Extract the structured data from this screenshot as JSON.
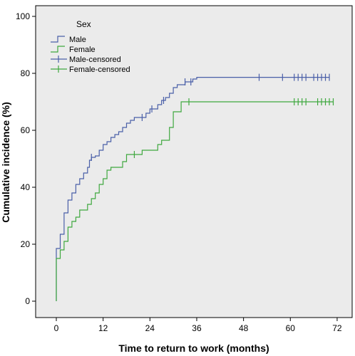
{
  "chart_data": {
    "type": "line",
    "subtype": "kaplan-meier-cumulative-incidence",
    "xlabel": "Time to return to work (months)",
    "ylabel": "Cumulative incidence (%)",
    "xlim": [
      0,
      72
    ],
    "ylim": [
      0,
      100
    ],
    "xticks": [
      0,
      12,
      24,
      36,
      48,
      60,
      72
    ],
    "yticks": [
      0,
      20,
      40,
      60,
      80,
      100
    ],
    "grid": false,
    "background": "#ebebeb",
    "legend": {
      "title": "Sex",
      "position": "top-left",
      "entries": [
        "Male",
        "Female",
        "Male-censored",
        "Female-censored"
      ]
    },
    "series": [
      {
        "name": "Male",
        "color": "#4a5fa8",
        "steps": [
          [
            0,
            0
          ],
          [
            0,
            18.5
          ],
          [
            1,
            18.5
          ],
          [
            1,
            23.5
          ],
          [
            2,
            23.5
          ],
          [
            2,
            31
          ],
          [
            3,
            31
          ],
          [
            3,
            35.5
          ],
          [
            4,
            35.5
          ],
          [
            4,
            38
          ],
          [
            5,
            38
          ],
          [
            5,
            41
          ],
          [
            6,
            41
          ],
          [
            6,
            43
          ],
          [
            7,
            43
          ],
          [
            7,
            45
          ],
          [
            8,
            45
          ],
          [
            8,
            47
          ],
          [
            8.5,
            47
          ],
          [
            8.5,
            49.5
          ],
          [
            9,
            49.5
          ],
          [
            9,
            50.5
          ],
          [
            10,
            50.5
          ],
          [
            10,
            51
          ],
          [
            11,
            51
          ],
          [
            11,
            53
          ],
          [
            12,
            53
          ],
          [
            12,
            55
          ],
          [
            13,
            55
          ],
          [
            13,
            56
          ],
          [
            14,
            56
          ],
          [
            14,
            57.5
          ],
          [
            15,
            57.5
          ],
          [
            15,
            58.5
          ],
          [
            16,
            58.5
          ],
          [
            16,
            59.5
          ],
          [
            17,
            59.5
          ],
          [
            17,
            61
          ],
          [
            18,
            61
          ],
          [
            18,
            62.5
          ],
          [
            19,
            62.5
          ],
          [
            19,
            63.5
          ],
          [
            20,
            63.5
          ],
          [
            20,
            64.5
          ],
          [
            23,
            64.5
          ],
          [
            23,
            66
          ],
          [
            24,
            66
          ],
          [
            24,
            67.5
          ],
          [
            26,
            67.5
          ],
          [
            26,
            69
          ],
          [
            27,
            69
          ],
          [
            27,
            70.5
          ],
          [
            28,
            70.5
          ],
          [
            28,
            71.5
          ],
          [
            29,
            71.5
          ],
          [
            29,
            73
          ],
          [
            30,
            73
          ],
          [
            30,
            75
          ],
          [
            31,
            75
          ],
          [
            31,
            76
          ],
          [
            33,
            76
          ],
          [
            33,
            77
          ],
          [
            35,
            77
          ],
          [
            35,
            78
          ],
          [
            36,
            78
          ],
          [
            36,
            78.6
          ],
          [
            70,
            78.6
          ]
        ],
        "censored": [
          9,
          22,
          24.5,
          27.5,
          33,
          34.5,
          52,
          58,
          61,
          62,
          63,
          64,
          66,
          67,
          68,
          69,
          70
        ]
      },
      {
        "name": "Female",
        "color": "#3fa83f",
        "steps": [
          [
            0,
            0
          ],
          [
            0,
            15
          ],
          [
            1,
            15
          ],
          [
            1,
            18
          ],
          [
            2,
            18
          ],
          [
            2,
            21
          ],
          [
            3,
            21
          ],
          [
            3,
            26
          ],
          [
            4,
            26
          ],
          [
            4,
            28
          ],
          [
            5,
            28
          ],
          [
            5,
            29.5
          ],
          [
            6,
            29.5
          ],
          [
            6,
            32
          ],
          [
            8,
            32
          ],
          [
            8,
            34
          ],
          [
            9,
            34
          ],
          [
            9,
            36
          ],
          [
            10,
            36
          ],
          [
            10,
            38
          ],
          [
            11,
            38
          ],
          [
            11,
            41
          ],
          [
            12,
            41
          ],
          [
            12,
            43
          ],
          [
            13,
            43
          ],
          [
            13,
            46
          ],
          [
            14,
            46
          ],
          [
            14,
            47
          ],
          [
            17,
            47
          ],
          [
            17,
            49
          ],
          [
            18,
            49
          ],
          [
            18,
            51.5
          ],
          [
            22,
            51.5
          ],
          [
            22,
            53
          ],
          [
            26,
            53
          ],
          [
            26,
            55
          ],
          [
            27,
            55
          ],
          [
            27,
            56.5
          ],
          [
            29,
            56.5
          ],
          [
            29,
            61
          ],
          [
            30,
            61
          ],
          [
            30,
            66.5
          ],
          [
            32,
            66.5
          ],
          [
            32,
            70
          ],
          [
            71,
            70
          ]
        ],
        "censored": [
          20,
          34,
          61,
          62,
          63,
          64,
          67,
          68,
          69,
          70,
          71
        ]
      }
    ]
  }
}
